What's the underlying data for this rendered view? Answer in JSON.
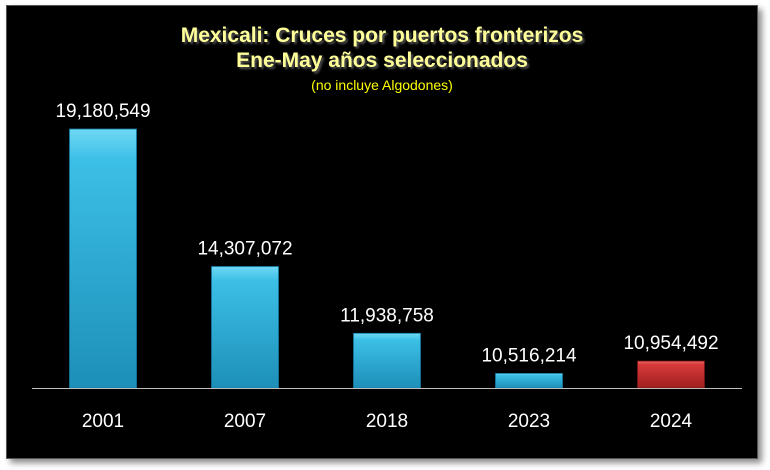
{
  "chart_data": {
    "type": "bar",
    "title": "Mexicali: Cruces por puertos fronterizos",
    "title_line2": "Ene-May años seleccionados",
    "subtitle": "(no incluye Algodones)",
    "categories": [
      "2001",
      "2007",
      "2018",
      "2023",
      "2024"
    ],
    "values": [
      19180549,
      14307072,
      11938758,
      10516214,
      10954492
    ],
    "value_labels": [
      "19,180,549",
      "14,307,072",
      "11,938,758",
      "10,516,214",
      "10,954,492"
    ],
    "xlabel": "",
    "ylabel": "",
    "ylim": [
      10000000,
      19500000
    ],
    "grid": false,
    "legend": "none",
    "colors": {
      "background": "#000000",
      "title": "#ffff99",
      "subtitle": "#ffff00",
      "bar_default_top": "#6fd8f5",
      "bar_default_mid": "#3cbfe6",
      "bar_default_bottom": "#1d8fb8",
      "bar_highlight_top": "#f26b6b",
      "bar_highlight_mid": "#d93a3a",
      "bar_highlight_bottom": "#9e1f1f",
      "text": "#ffffff"
    },
    "highlight_category": "2024"
  }
}
